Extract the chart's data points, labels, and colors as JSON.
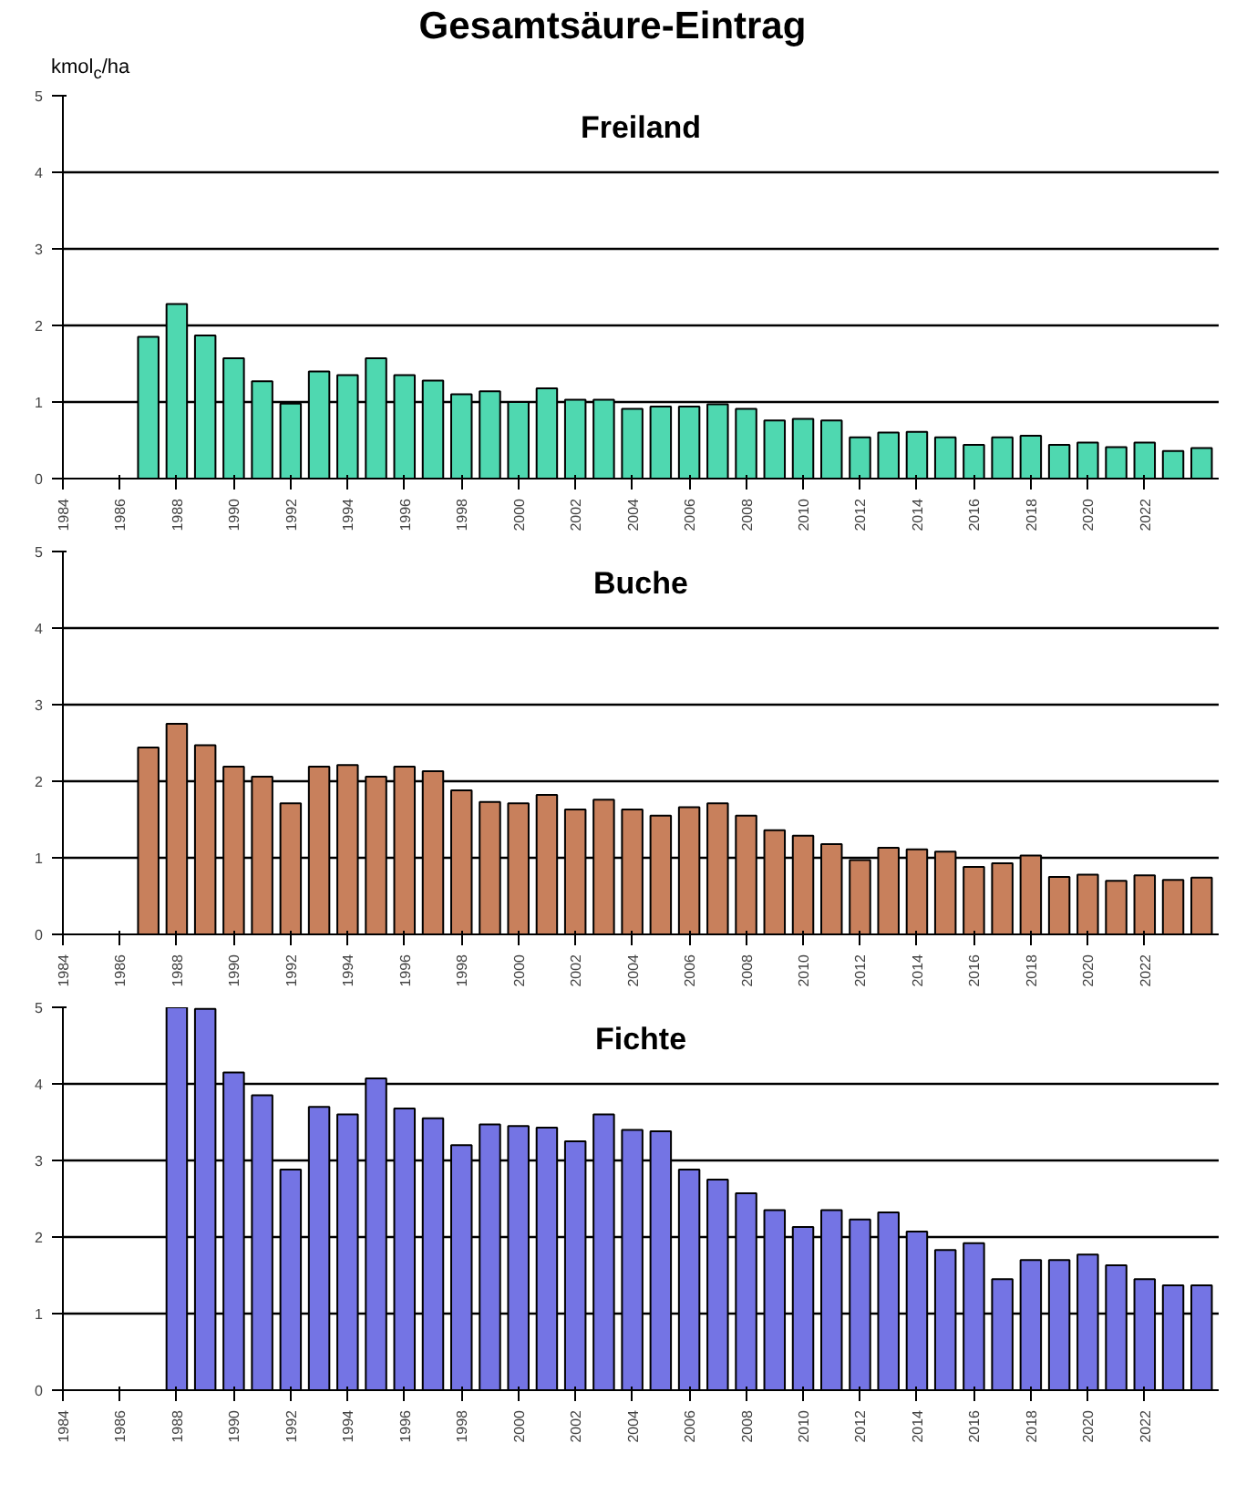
{
  "chart_data": [
    {
      "type": "bar",
      "title": "Gesamtsäure-Eintrag",
      "ylabel": "kmol$_{c}$/ha",
      "xlim": [
        1984,
        2024.6
      ],
      "ylim": [
        0,
        5
      ],
      "yticks": [
        0,
        1,
        2,
        3,
        4,
        5
      ],
      "xticks": [
        1984,
        1986,
        1988,
        1990,
        1992,
        1994,
        1996,
        1998,
        2000,
        2002,
        2004,
        2006,
        2008,
        2010,
        2012,
        2014,
        2016,
        2018,
        2020,
        2022
      ],
      "grid": "y",
      "series": [
        {
          "name": "Freiland",
          "color": "#4fd8b0",
          "x": [
            1987,
            1988,
            1989,
            1990,
            1991,
            1992,
            1993,
            1994,
            1995,
            1996,
            1997,
            1998,
            1999,
            2000,
            2001,
            2002,
            2003,
            2004,
            2005,
            2006,
            2007,
            2008,
            2009,
            2010,
            2011,
            2012,
            2013,
            2014,
            2015,
            2016,
            2017,
            2018,
            2019,
            2020,
            2021,
            2022,
            2023,
            2024
          ],
          "values": [
            1.85,
            2.28,
            1.87,
            1.57,
            1.27,
            0.98,
            1.4,
            1.35,
            1.57,
            1.35,
            1.28,
            1.1,
            1.14,
            1.0,
            1.18,
            1.03,
            1.03,
            0.91,
            0.94,
            0.94,
            0.97,
            0.91,
            0.76,
            0.78,
            0.76,
            0.54,
            0.6,
            0.61,
            0.54,
            0.44,
            0.54,
            0.56,
            0.44,
            0.47,
            0.41,
            0.47,
            0.36,
            0.4
          ]
        }
      ]
    },
    {
      "type": "bar",
      "xlim": [
        1984,
        2024.6
      ],
      "ylim": [
        0,
        5
      ],
      "yticks": [
        0,
        1,
        2,
        3,
        4,
        5
      ],
      "xticks": [
        1984,
        1986,
        1988,
        1990,
        1992,
        1994,
        1996,
        1998,
        2000,
        2002,
        2004,
        2006,
        2008,
        2010,
        2012,
        2014,
        2016,
        2018,
        2020,
        2022
      ],
      "grid": "y",
      "series": [
        {
          "name": "Buche",
          "color": "#c8805c",
          "x": [
            1987,
            1988,
            1989,
            1990,
            1991,
            1992,
            1993,
            1994,
            1995,
            1996,
            1997,
            1998,
            1999,
            2000,
            2001,
            2002,
            2003,
            2004,
            2005,
            2006,
            2007,
            2008,
            2009,
            2010,
            2011,
            2012,
            2013,
            2014,
            2015,
            2016,
            2017,
            2018,
            2019,
            2020,
            2021,
            2022,
            2023,
            2024
          ],
          "values": [
            2.44,
            2.75,
            2.47,
            2.19,
            2.06,
            1.71,
            2.19,
            2.21,
            2.06,
            2.19,
            2.13,
            1.88,
            1.73,
            1.71,
            1.82,
            1.63,
            1.76,
            1.63,
            1.55,
            1.66,
            1.71,
            1.55,
            1.36,
            1.29,
            1.18,
            0.97,
            1.13,
            1.11,
            1.08,
            0.88,
            0.93,
            1.03,
            0.75,
            0.78,
            0.7,
            0.77,
            0.71,
            0.74
          ]
        }
      ]
    },
    {
      "type": "bar",
      "xlim": [
        1984,
        2024.6
      ],
      "ylim": [
        0,
        5
      ],
      "yticks": [
        0,
        1,
        2,
        3,
        4,
        5
      ],
      "xticks": [
        1984,
        1986,
        1988,
        1990,
        1992,
        1994,
        1996,
        1998,
        2000,
        2002,
        2004,
        2006,
        2008,
        2010,
        2012,
        2014,
        2016,
        2018,
        2020,
        2022
      ],
      "grid": "y",
      "series": [
        {
          "name": "Fichte",
          "color": "#7474e4",
          "x": [
            1988,
            1989,
            1990,
            1991,
            1992,
            1993,
            1994,
            1995,
            1996,
            1997,
            1998,
            1999,
            2000,
            2001,
            2002,
            2003,
            2004,
            2005,
            2006,
            2007,
            2008,
            2009,
            2010,
            2011,
            2012,
            2013,
            2014,
            2015,
            2016,
            2017,
            2018,
            2019,
            2020,
            2021,
            2022,
            2023,
            2024
          ],
          "values": [
            5.0,
            4.98,
            4.15,
            3.85,
            2.88,
            3.7,
            3.6,
            4.07,
            3.68,
            3.55,
            3.2,
            3.47,
            3.45,
            3.43,
            3.25,
            3.6,
            3.4,
            3.38,
            2.88,
            2.75,
            2.57,
            2.35,
            2.13,
            2.35,
            2.23,
            2.32,
            2.07,
            1.83,
            1.92,
            1.45,
            1.7,
            1.7,
            1.77,
            1.63,
            1.45,
            1.37,
            1.37
          ]
        }
      ]
    }
  ]
}
